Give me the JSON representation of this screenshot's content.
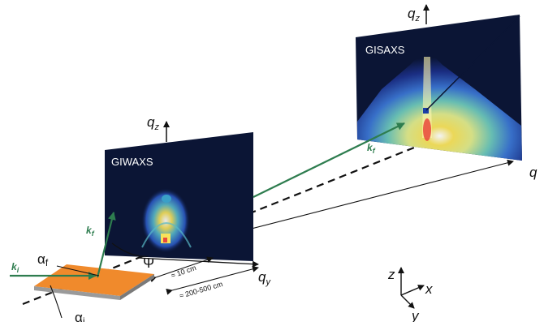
{
  "labels": {
    "giwaxs": "GIWAXS",
    "gisaxs": "GISAXS",
    "qz": "q",
    "qz_sub": "z",
    "qy": "q",
    "qy_sub": "y",
    "ki": "k",
    "ki_sub": "i",
    "kf": "k",
    "kf_sub": "f",
    "alpha": "α",
    "alpha_f_sub": "f",
    "alpha_i_sub": "i",
    "psi": "Ψ",
    "dist_near": "≈ 10 cm",
    "dist_far": "≈ 200-500 cm",
    "axis_z": "z",
    "axis_x": "x",
    "axis_y": "y"
  },
  "colors": {
    "beam": "#2e7d4f",
    "sample_top": "#f08a2c",
    "sample_side": "#9a9a9a",
    "detector_bg": "#0b1535"
  }
}
